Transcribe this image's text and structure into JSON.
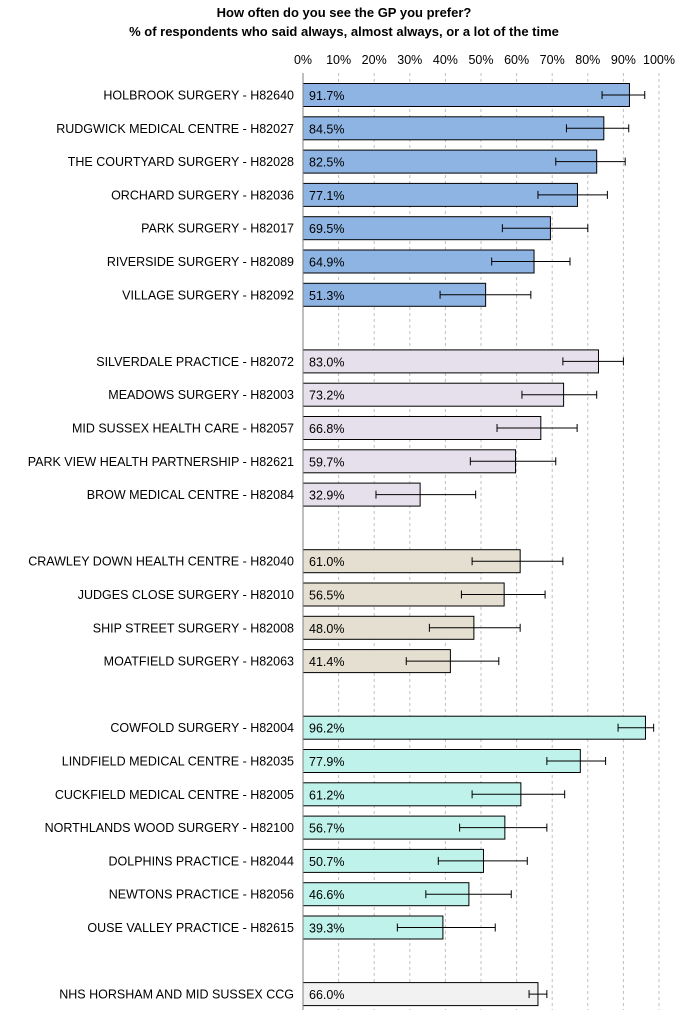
{
  "chart_data": {
    "type": "bar",
    "orientation": "horizontal",
    "title": "How often do you see the GP you prefer?",
    "subtitle": "% of respondents who said always, almost always, or a lot of the time",
    "xlim": [
      0,
      100
    ],
    "xticks": [
      "0%",
      "10%",
      "20%",
      "30%",
      "40%",
      "50%",
      "60%",
      "70%",
      "80%",
      "90%",
      "100%"
    ],
    "grid": true,
    "error_bars": true,
    "groups": [
      {
        "color": "#8eb4e3",
        "items": [
          {
            "label": "HOLBROOK SURGERY - H82640",
            "value": 91.7,
            "value_label": "91.7%",
            "err_low": 84.0,
            "err_high": 96.0
          },
          {
            "label": "RUDGWICK MEDICAL CENTRE - H82027",
            "value": 84.5,
            "value_label": "84.5%",
            "err_low": 74.0,
            "err_high": 91.5
          },
          {
            "label": "THE COURTYARD SURGERY - H82028",
            "value": 82.5,
            "value_label": "82.5%",
            "err_low": 71.0,
            "err_high": 90.5
          },
          {
            "label": "ORCHARD SURGERY - H82036",
            "value": 77.1,
            "value_label": "77.1%",
            "err_low": 66.0,
            "err_high": 85.5
          },
          {
            "label": "PARK SURGERY - H82017",
            "value": 69.5,
            "value_label": "69.5%",
            "err_low": 56.0,
            "err_high": 80.0
          },
          {
            "label": "RIVERSIDE SURGERY - H82089",
            "value": 64.9,
            "value_label": "64.9%",
            "err_low": 53.0,
            "err_high": 75.0
          },
          {
            "label": "VILLAGE SURGERY - H82092",
            "value": 51.3,
            "value_label": "51.3%",
            "err_low": 38.5,
            "err_high": 64.0
          }
        ]
      },
      {
        "color": "#e6e0ec",
        "items": [
          {
            "label": "SILVERDALE PRACTICE - H82072",
            "value": 83.0,
            "value_label": "83.0%",
            "err_low": 73.0,
            "err_high": 90.0
          },
          {
            "label": "MEADOWS SURGERY - H82003",
            "value": 73.2,
            "value_label": "73.2%",
            "err_low": 61.5,
            "err_high": 82.5
          },
          {
            "label": "MID SUSSEX HEALTH CARE - H82057",
            "value": 66.8,
            "value_label": "66.8%",
            "err_low": 54.5,
            "err_high": 77.0
          },
          {
            "label": "PARK VIEW HEALTH PARTNERSHIP - H82621",
            "value": 59.7,
            "value_label": "59.7%",
            "err_low": 47.0,
            "err_high": 71.0
          },
          {
            "label": "BROW MEDICAL CENTRE - H82084",
            "value": 32.9,
            "value_label": "32.9%",
            "err_low": 20.5,
            "err_high": 48.5
          }
        ]
      },
      {
        "color": "#e4dfd0",
        "items": [
          {
            "label": "CRAWLEY DOWN HEALTH CENTRE - H82040",
            "value": 61.0,
            "value_label": "61.0%",
            "err_low": 47.5,
            "err_high": 73.0
          },
          {
            "label": "JUDGES CLOSE SURGERY - H82010",
            "value": 56.5,
            "value_label": "56.5%",
            "err_low": 44.5,
            "err_high": 68.0
          },
          {
            "label": "SHIP STREET SURGERY - H82008",
            "value": 48.0,
            "value_label": "48.0%",
            "err_low": 35.5,
            "err_high": 61.0
          },
          {
            "label": "MOATFIELD SURGERY - H82063",
            "value": 41.4,
            "value_label": "41.4%",
            "err_low": 29.0,
            "err_high": 55.0
          }
        ]
      },
      {
        "color": "#bff2ea",
        "items": [
          {
            "label": "COWFOLD SURGERY - H82004",
            "value": 96.2,
            "value_label": "96.2%",
            "err_low": 88.5,
            "err_high": 98.5
          },
          {
            "label": "LINDFIELD MEDICAL CENTRE - H82035",
            "value": 77.9,
            "value_label": "77.9%",
            "err_low": 68.5,
            "err_high": 85.0
          },
          {
            "label": "CUCKFIELD MEDICAL CENTRE - H82005",
            "value": 61.2,
            "value_label": "61.2%",
            "err_low": 47.5,
            "err_high": 73.5
          },
          {
            "label": "NORTHLANDS WOOD SURGERY - H82100",
            "value": 56.7,
            "value_label": "56.7%",
            "err_low": 44.0,
            "err_high": 68.5
          },
          {
            "label": "DOLPHINS PRACTICE - H82044",
            "value": 50.7,
            "value_label": "50.7%",
            "err_low": 38.0,
            "err_high": 63.0
          },
          {
            "label": "NEWTONS PRACTICE - H82056",
            "value": 46.6,
            "value_label": "46.6%",
            "err_low": 34.5,
            "err_high": 58.5
          },
          {
            "label": "OUSE VALLEY PRACTICE - H82615",
            "value": 39.3,
            "value_label": "39.3%",
            "err_low": 26.5,
            "err_high": 54.0
          }
        ]
      },
      {
        "color": "#f2f2f2",
        "items": [
          {
            "label": "NHS HORSHAM AND MID SUSSEX CCG",
            "value": 66.0,
            "value_label": "66.0%",
            "err_low": 63.5,
            "err_high": 68.5
          }
        ]
      }
    ]
  }
}
